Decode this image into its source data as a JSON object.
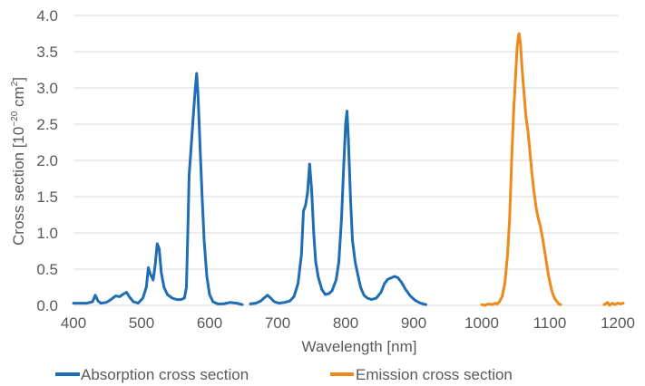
{
  "chart_data": {
    "type": "line",
    "title": "",
    "xlabel": "Wavelength [nm]",
    "ylabel": "Cross section [10",
    "ylabel_sup": "−20",
    "ylabel_unit": " cm",
    "ylabel_sup2": "2",
    "ylabel_close": "]",
    "xlim": [
      400,
      1200
    ],
    "ylim": [
      0,
      4.0
    ],
    "x_ticks": [
      "400",
      "500",
      "600",
      "700",
      "800",
      "900",
      "1000",
      "1100",
      "1200"
    ],
    "y_ticks": [
      "0.0",
      "0.5",
      "1.0",
      "1.5",
      "2.0",
      "2.5",
      "3.0",
      "3.5",
      "4.0"
    ],
    "grid": "horizontal",
    "legend_position": "bottom",
    "series": [
      {
        "name": "Absorption cross section",
        "color": "#1f6db3",
        "segments": [
          [
            [
              400,
              0.03
            ],
            [
              410,
              0.03
            ],
            [
              420,
              0.03
            ],
            [
              428,
              0.05
            ],
            [
              432,
              0.14
            ],
            [
              436,
              0.06
            ],
            [
              440,
              0.03
            ],
            [
              448,
              0.04
            ],
            [
              455,
              0.08
            ],
            [
              462,
              0.13
            ],
            [
              468,
              0.12
            ],
            [
              474,
              0.16
            ],
            [
              478,
              0.18
            ],
            [
              482,
              0.12
            ],
            [
              488,
              0.05
            ],
            [
              495,
              0.03
            ],
            [
              502,
              0.1
            ],
            [
              507,
              0.25
            ],
            [
              510,
              0.52
            ],
            [
              513,
              0.43
            ],
            [
              517,
              0.35
            ],
            [
              520,
              0.55
            ],
            [
              523,
              0.85
            ],
            [
              526,
              0.78
            ],
            [
              529,
              0.45
            ],
            [
              533,
              0.25
            ],
            [
              538,
              0.15
            ],
            [
              545,
              0.1
            ],
            [
              552,
              0.08
            ],
            [
              558,
              0.08
            ],
            [
              563,
              0.1
            ],
            [
              566,
              0.25
            ],
            [
              568,
              1.0
            ],
            [
              570,
              1.8
            ],
            [
              573,
              2.2
            ],
            [
              576,
              2.6
            ],
            [
              579,
              3.0
            ],
            [
              581,
              3.2
            ],
            [
              583,
              2.9
            ],
            [
              586,
              2.2
            ],
            [
              589,
              1.5
            ],
            [
              592,
              0.9
            ],
            [
              596,
              0.4
            ],
            [
              600,
              0.15
            ],
            [
              605,
              0.05
            ],
            [
              612,
              0.02
            ],
            [
              620,
              0.02
            ],
            [
              630,
              0.04
            ],
            [
              640,
              0.03
            ],
            [
              648,
              0.01
            ]
          ],
          [
            [
              660,
              0.02
            ],
            [
              668,
              0.03
            ],
            [
              675,
              0.06
            ],
            [
              680,
              0.1
            ],
            [
              685,
              0.14
            ],
            [
              690,
              0.1
            ],
            [
              695,
              0.05
            ],
            [
              702,
              0.03
            ],
            [
              710,
              0.04
            ],
            [
              718,
              0.06
            ],
            [
              724,
              0.12
            ],
            [
              730,
              0.3
            ],
            [
              735,
              0.7
            ],
            [
              738,
              1.3
            ],
            [
              741,
              1.38
            ],
            [
              744,
              1.55
            ],
            [
              747,
              1.95
            ],
            [
              750,
              1.6
            ],
            [
              753,
              1.0
            ],
            [
              756,
              0.6
            ],
            [
              760,
              0.38
            ],
            [
              765,
              0.22
            ],
            [
              770,
              0.15
            ],
            [
              775,
              0.16
            ],
            [
              780,
              0.2
            ],
            [
              786,
              0.35
            ],
            [
              790,
              0.6
            ],
            [
              794,
              1.2
            ],
            [
              797,
              1.9
            ],
            [
              800,
              2.5
            ],
            [
              802,
              2.68
            ],
            [
              804,
              2.3
            ],
            [
              807,
              1.5
            ],
            [
              810,
              0.9
            ],
            [
              814,
              0.6
            ],
            [
              818,
              0.42
            ],
            [
              822,
              0.25
            ],
            [
              827,
              0.14
            ],
            [
              832,
              0.1
            ],
            [
              838,
              0.08
            ],
            [
              845,
              0.1
            ],
            [
              852,
              0.18
            ],
            [
              857,
              0.3
            ],
            [
              862,
              0.36
            ],
            [
              867,
              0.38
            ],
            [
              872,
              0.4
            ],
            [
              877,
              0.38
            ],
            [
              882,
              0.32
            ],
            [
              888,
              0.22
            ],
            [
              895,
              0.13
            ],
            [
              902,
              0.07
            ],
            [
              910,
              0.03
            ],
            [
              918,
              0.01
            ]
          ]
        ]
      },
      {
        "name": "Emission cross section",
        "color": "#ed8a1b",
        "segments": [
          [
            [
              1000,
              0.01
            ],
            [
              1005,
              0.0
            ],
            [
              1010,
              0.02
            ],
            [
              1015,
              0.01
            ],
            [
              1020,
              0.03
            ],
            [
              1023,
              0.02
            ],
            [
              1026,
              0.05
            ],
            [
              1030,
              0.12
            ],
            [
              1034,
              0.3
            ],
            [
              1038,
              0.7
            ],
            [
              1041,
              1.2
            ],
            [
              1044,
              2.0
            ],
            [
              1047,
              2.7
            ],
            [
              1050,
              3.2
            ],
            [
              1052,
              3.55
            ],
            [
              1054,
              3.72
            ],
            [
              1055,
              3.75
            ],
            [
              1057,
              3.6
            ],
            [
              1059,
              3.3
            ],
            [
              1062,
              2.95
            ],
            [
              1065,
              2.6
            ],
            [
              1068,
              2.4
            ],
            [
              1071,
              2.1
            ],
            [
              1074,
              1.8
            ],
            [
              1077,
              1.55
            ],
            [
              1080,
              1.35
            ],
            [
              1083,
              1.2
            ],
            [
              1086,
              1.1
            ],
            [
              1089,
              0.95
            ],
            [
              1092,
              0.78
            ],
            [
              1095,
              0.6
            ],
            [
              1098,
              0.42
            ],
            [
              1101,
              0.28
            ],
            [
              1104,
              0.17
            ],
            [
              1107,
              0.1
            ],
            [
              1110,
              0.06
            ],
            [
              1113,
              0.02
            ],
            [
              1116,
              0.01
            ]
          ],
          [
            [
              1180,
              0.01
            ],
            [
              1185,
              0.04
            ],
            [
              1188,
              0.0
            ],
            [
              1192,
              0.03
            ],
            [
              1196,
              0.01
            ],
            [
              1200,
              0.03
            ],
            [
              1204,
              0.02
            ],
            [
              1208,
              0.03
            ]
          ]
        ]
      }
    ]
  }
}
